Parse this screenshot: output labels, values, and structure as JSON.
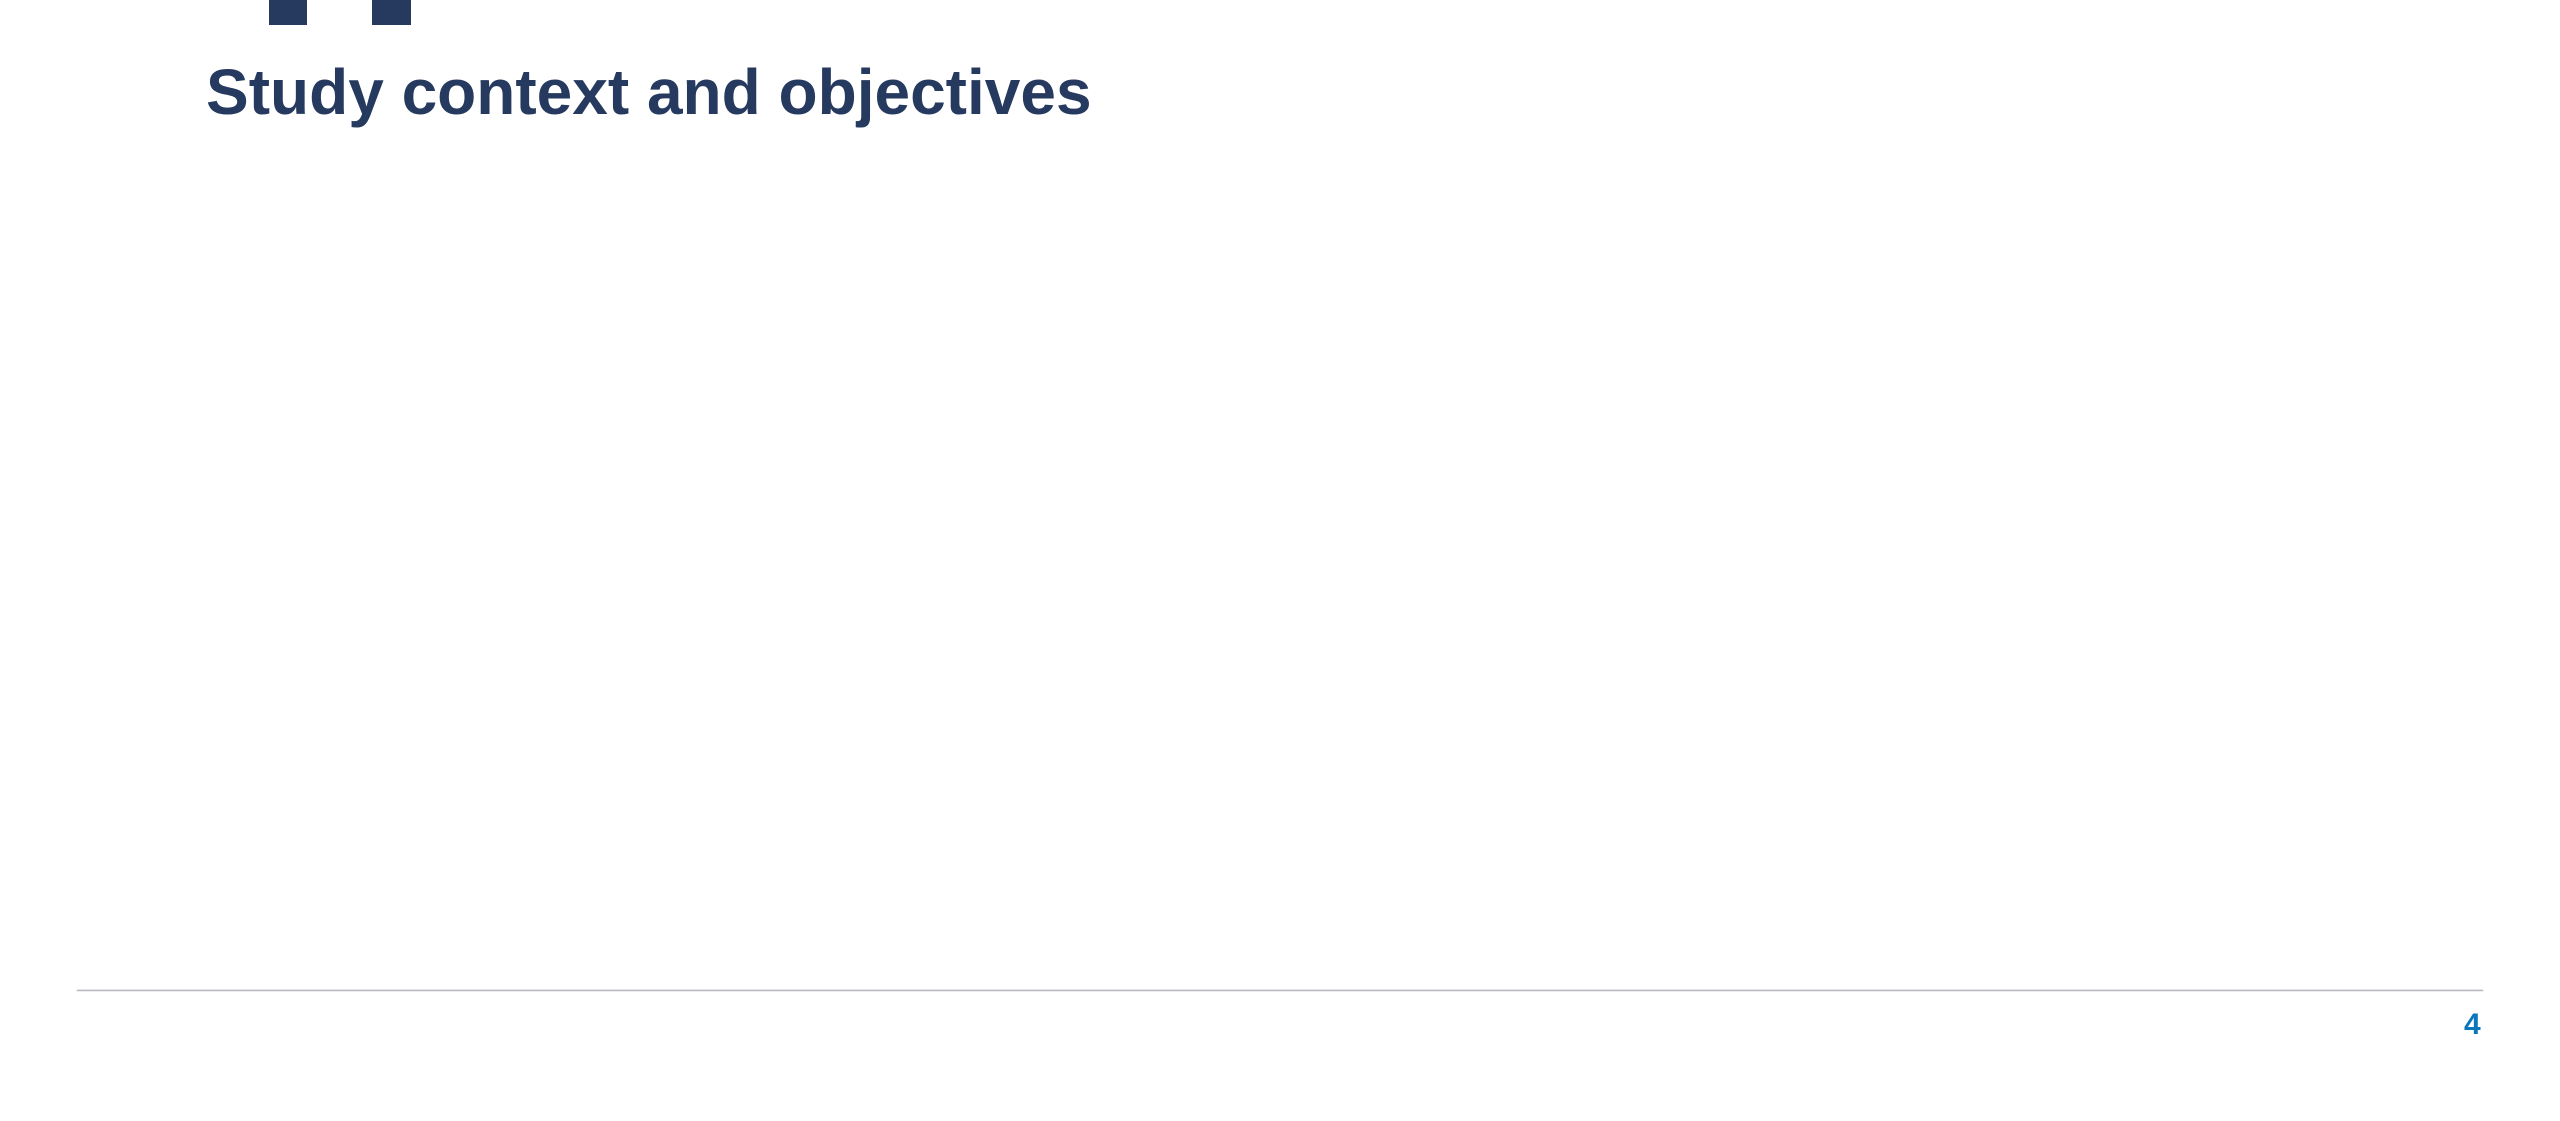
{
  "header": {
    "title": "Study context and objectives"
  },
  "footer": {
    "page_number": "4"
  }
}
